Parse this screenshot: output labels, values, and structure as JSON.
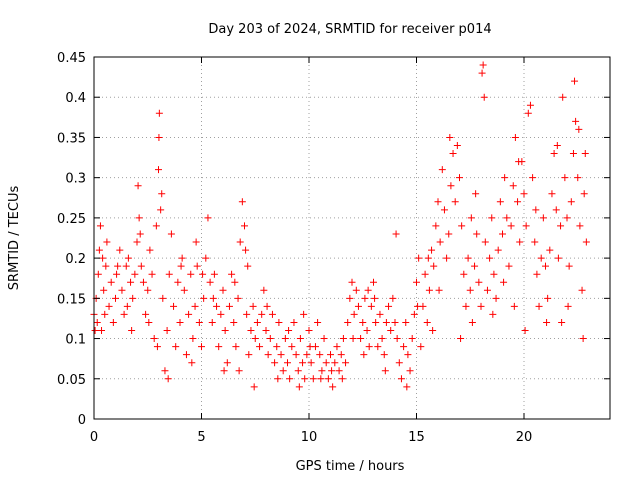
{
  "chart_data": {
    "type": "scatter",
    "title": "Day 203 of 2024, SRMTID for receiver p014",
    "xlabel": "GPS time / hours",
    "ylabel": "SRMTID / TECUs",
    "xlim": [
      0,
      24
    ],
    "ylim": [
      0,
      0.45
    ],
    "xticks": [
      "0",
      "5",
      "10",
      "15",
      "20"
    ],
    "yticks": [
      "0",
      "0.05",
      "0.1",
      "0.15",
      "0.2",
      "0.25",
      "0.3",
      "0.35",
      "0.4",
      "0.45"
    ],
    "grid": true,
    "marker": "+",
    "color": "#ff0000",
    "series": [
      {
        "name": "SRMTID",
        "points": [
          [
            0.0,
            0.13
          ],
          [
            0.1,
            0.15
          ],
          [
            0.15,
            0.12
          ],
          [
            0.2,
            0.18
          ],
          [
            0.25,
            0.21
          ],
          [
            0.3,
            0.24
          ],
          [
            0.35,
            0.11
          ],
          [
            0.4,
            0.2
          ],
          [
            0.45,
            0.16
          ],
          [
            0.5,
            0.13
          ],
          [
            0.6,
            0.22
          ],
          [
            0.7,
            0.14
          ],
          [
            0.8,
            0.17
          ],
          [
            0.9,
            0.12
          ],
          [
            1.0,
            0.15
          ],
          [
            1.1,
            0.19
          ],
          [
            1.2,
            0.21
          ],
          [
            1.3,
            0.16
          ],
          [
            1.4,
            0.13
          ],
          [
            1.5,
            0.19
          ],
          [
            1.6,
            0.2
          ],
          [
            1.7,
            0.17
          ],
          [
            1.8,
            0.15
          ],
          [
            1.9,
            0.18
          ],
          [
            2.0,
            0.22
          ],
          [
            2.05,
            0.29
          ],
          [
            2.1,
            0.25
          ],
          [
            2.2,
            0.19
          ],
          [
            2.3,
            0.17
          ],
          [
            2.4,
            0.13
          ],
          [
            2.5,
            0.16
          ],
          [
            2.6,
            0.21
          ],
          [
            2.7,
            0.18
          ],
          [
            2.8,
            0.1
          ],
          [
            2.9,
            0.24
          ],
          [
            3.0,
            0.31
          ],
          [
            3.02,
            0.35
          ],
          [
            3.04,
            0.38
          ],
          [
            3.1,
            0.26
          ],
          [
            3.2,
            0.15
          ],
          [
            3.3,
            0.06
          ],
          [
            3.4,
            0.11
          ],
          [
            3.5,
            0.18
          ],
          [
            3.6,
            0.23
          ],
          [
            3.7,
            0.14
          ],
          [
            3.8,
            0.09
          ],
          [
            3.9,
            0.17
          ],
          [
            4.0,
            0.12
          ],
          [
            4.1,
            0.2
          ],
          [
            4.2,
            0.16
          ],
          [
            4.3,
            0.08
          ],
          [
            4.4,
            0.13
          ],
          [
            4.5,
            0.18
          ],
          [
            4.6,
            0.1
          ],
          [
            4.7,
            0.14
          ],
          [
            4.8,
            0.19
          ],
          [
            4.9,
            0.12
          ],
          [
            5.0,
            0.09
          ],
          [
            5.1,
            0.15
          ],
          [
            5.2,
            0.2
          ],
          [
            5.3,
            0.25
          ],
          [
            5.4,
            0.17
          ],
          [
            5.5,
            0.12
          ],
          [
            5.6,
            0.18
          ],
          [
            5.7,
            0.14
          ],
          [
            5.8,
            0.09
          ],
          [
            5.9,
            0.13
          ],
          [
            6.0,
            0.16
          ],
          [
            6.1,
            0.11
          ],
          [
            6.2,
            0.07
          ],
          [
            6.3,
            0.14
          ],
          [
            6.4,
            0.18
          ],
          [
            6.5,
            0.12
          ],
          [
            6.6,
            0.09
          ],
          [
            6.7,
            0.15
          ],
          [
            6.8,
            0.22
          ],
          [
            6.9,
            0.27
          ],
          [
            7.0,
            0.24
          ],
          [
            7.05,
            0.21
          ],
          [
            7.1,
            0.13
          ],
          [
            7.2,
            0.08
          ],
          [
            7.3,
            0.11
          ],
          [
            7.4,
            0.14
          ],
          [
            7.5,
            0.1
          ],
          [
            7.6,
            0.12
          ],
          [
            7.7,
            0.09
          ],
          [
            7.8,
            0.13
          ],
          [
            7.9,
            0.16
          ],
          [
            8.0,
            0.11
          ],
          [
            8.1,
            0.08
          ],
          [
            8.2,
            0.1
          ],
          [
            8.3,
            0.13
          ],
          [
            8.4,
            0.07
          ],
          [
            8.5,
            0.09
          ],
          [
            8.6,
            0.12
          ],
          [
            8.7,
            0.08
          ],
          [
            8.8,
            0.06
          ],
          [
            8.9,
            0.1
          ],
          [
            9.0,
            0.07
          ],
          [
            9.1,
            0.05
          ],
          [
            9.2,
            0.09
          ],
          [
            9.3,
            0.12
          ],
          [
            9.4,
            0.08
          ],
          [
            9.5,
            0.06
          ],
          [
            9.6,
            0.1
          ],
          [
            9.7,
            0.07
          ],
          [
            9.8,
            0.05
          ],
          [
            9.9,
            0.08
          ],
          [
            10.0,
            0.11
          ],
          [
            10.1,
            0.07
          ],
          [
            10.2,
            0.05
          ],
          [
            10.3,
            0.09
          ],
          [
            10.4,
            0.12
          ],
          [
            10.5,
            0.08
          ],
          [
            10.6,
            0.06
          ],
          [
            10.7,
            0.1
          ],
          [
            10.8,
            0.07
          ],
          [
            10.9,
            0.05
          ],
          [
            11.0,
            0.08
          ],
          [
            11.1,
            0.04
          ],
          [
            11.2,
            0.07
          ],
          [
            11.3,
            0.09
          ],
          [
            11.4,
            0.06
          ],
          [
            11.5,
            0.08
          ],
          [
            11.6,
            0.1
          ],
          [
            11.7,
            0.07
          ],
          [
            11.8,
            0.12
          ],
          [
            11.9,
            0.15
          ],
          [
            12.0,
            0.17
          ],
          [
            12.1,
            0.13
          ],
          [
            12.2,
            0.16
          ],
          [
            12.3,
            0.14
          ],
          [
            12.4,
            0.1
          ],
          [
            12.5,
            0.12
          ],
          [
            12.6,
            0.15
          ],
          [
            12.7,
            0.11
          ],
          [
            12.8,
            0.09
          ],
          [
            12.9,
            0.14
          ],
          [
            13.0,
            0.17
          ],
          [
            13.1,
            0.12
          ],
          [
            13.2,
            0.09
          ],
          [
            13.3,
            0.13
          ],
          [
            13.4,
            0.1
          ],
          [
            13.5,
            0.08
          ],
          [
            13.6,
            0.12
          ],
          [
            13.7,
            0.14
          ],
          [
            13.8,
            0.11
          ],
          [
            13.9,
            0.15
          ],
          [
            14.0,
            0.12
          ],
          [
            14.05,
            0.23
          ],
          [
            14.1,
            0.1
          ],
          [
            14.2,
            0.07
          ],
          [
            14.3,
            0.05
          ],
          [
            14.4,
            0.09
          ],
          [
            14.5,
            0.12
          ],
          [
            14.6,
            0.08
          ],
          [
            14.7,
            0.06
          ],
          [
            14.8,
            0.1
          ],
          [
            14.9,
            0.13
          ],
          [
            15.0,
            0.17
          ],
          [
            15.1,
            0.2
          ],
          [
            15.2,
            0.09
          ],
          [
            15.3,
            0.14
          ],
          [
            15.4,
            0.18
          ],
          [
            15.5,
            0.12
          ],
          [
            15.6,
            0.16
          ],
          [
            15.7,
            0.21
          ],
          [
            15.8,
            0.19
          ],
          [
            15.9,
            0.24
          ],
          [
            16.0,
            0.27
          ],
          [
            16.1,
            0.22
          ],
          [
            16.2,
            0.31
          ],
          [
            16.3,
            0.26
          ],
          [
            16.4,
            0.2
          ],
          [
            16.5,
            0.23
          ],
          [
            16.6,
            0.29
          ],
          [
            16.7,
            0.33
          ],
          [
            16.8,
            0.27
          ],
          [
            16.9,
            0.34
          ],
          [
            17.0,
            0.3
          ],
          [
            17.1,
            0.24
          ],
          [
            17.2,
            0.18
          ],
          [
            17.3,
            0.14
          ],
          [
            17.4,
            0.2
          ],
          [
            17.5,
            0.16
          ],
          [
            17.6,
            0.12
          ],
          [
            17.7,
            0.19
          ],
          [
            17.8,
            0.23
          ],
          [
            17.9,
            0.17
          ],
          [
            18.0,
            0.14
          ],
          [
            18.05,
            0.43
          ],
          [
            18.1,
            0.44
          ],
          [
            18.15,
            0.4
          ],
          [
            18.2,
            0.22
          ],
          [
            18.3,
            0.16
          ],
          [
            18.4,
            0.2
          ],
          [
            18.5,
            0.25
          ],
          [
            18.6,
            0.18
          ],
          [
            18.7,
            0.15
          ],
          [
            18.8,
            0.21
          ],
          [
            18.9,
            0.27
          ],
          [
            19.0,
            0.23
          ],
          [
            19.1,
            0.3
          ],
          [
            19.2,
            0.25
          ],
          [
            19.3,
            0.19
          ],
          [
            19.4,
            0.24
          ],
          [
            19.5,
            0.29
          ],
          [
            19.6,
            0.35
          ],
          [
            19.7,
            0.27
          ],
          [
            19.8,
            0.22
          ],
          [
            19.9,
            0.32
          ],
          [
            20.0,
            0.28
          ],
          [
            20.1,
            0.24
          ],
          [
            20.2,
            0.38
          ],
          [
            20.3,
            0.39
          ],
          [
            20.4,
            0.3
          ],
          [
            20.5,
            0.22
          ],
          [
            20.6,
            0.18
          ],
          [
            20.7,
            0.14
          ],
          [
            20.8,
            0.2
          ],
          [
            20.9,
            0.25
          ],
          [
            21.0,
            0.19
          ],
          [
            21.1,
            0.15
          ],
          [
            21.2,
            0.21
          ],
          [
            21.3,
            0.28
          ],
          [
            21.4,
            0.33
          ],
          [
            21.5,
            0.26
          ],
          [
            21.6,
            0.2
          ],
          [
            21.7,
            0.24
          ],
          [
            21.8,
            0.4
          ],
          [
            21.9,
            0.3
          ],
          [
            22.0,
            0.25
          ],
          [
            22.1,
            0.19
          ],
          [
            22.2,
            0.27
          ],
          [
            22.3,
            0.33
          ],
          [
            22.35,
            0.42
          ],
          [
            22.4,
            0.37
          ],
          [
            22.5,
            0.3
          ],
          [
            22.6,
            0.24
          ],
          [
            22.7,
            0.16
          ],
          [
            22.75,
            0.1
          ],
          [
            22.8,
            0.28
          ],
          [
            0.05,
            0.11
          ],
          [
            0.55,
            0.19
          ],
          [
            1.05,
            0.18
          ],
          [
            1.55,
            0.14
          ],
          [
            2.15,
            0.23
          ],
          [
            2.55,
            0.12
          ],
          [
            3.15,
            0.28
          ],
          [
            3.45,
            0.05
          ],
          [
            4.05,
            0.19
          ],
          [
            4.55,
            0.07
          ],
          [
            5.05,
            0.18
          ],
          [
            5.55,
            0.15
          ],
          [
            6.05,
            0.06
          ],
          [
            6.55,
            0.17
          ],
          [
            7.15,
            0.19
          ],
          [
            7.45,
            0.04
          ],
          [
            8.05,
            0.14
          ],
          [
            8.55,
            0.05
          ],
          [
            9.05,
            0.11
          ],
          [
            9.55,
            0.04
          ],
          [
            10.05,
            0.09
          ],
          [
            10.55,
            0.05
          ],
          [
            11.05,
            0.06
          ],
          [
            11.55,
            0.05
          ],
          [
            12.05,
            0.1
          ],
          [
            12.55,
            0.08
          ],
          [
            13.05,
            0.15
          ],
          [
            13.55,
            0.06
          ],
          [
            14.55,
            0.04
          ],
          [
            15.05,
            0.14
          ],
          [
            15.55,
            0.2
          ],
          [
            16.05,
            0.16
          ],
          [
            16.55,
            0.35
          ],
          [
            17.05,
            0.1
          ],
          [
            17.55,
            0.25
          ],
          [
            18.55,
            0.13
          ],
          [
            19.05,
            0.17
          ],
          [
            19.55,
            0.14
          ],
          [
            20.05,
            0.11
          ],
          [
            20.55,
            0.26
          ],
          [
            21.05,
            0.12
          ],
          [
            21.55,
            0.34
          ],
          [
            22.05,
            0.14
          ],
          [
            22.55,
            0.36
          ],
          [
            22.85,
            0.33
          ],
          [
            22.9,
            0.22
          ],
          [
            1.75,
            0.11
          ],
          [
            2.95,
            0.09
          ],
          [
            4.75,
            0.22
          ],
          [
            6.75,
            0.06
          ],
          [
            9.75,
            0.13
          ],
          [
            12.75,
            0.16
          ],
          [
            15.75,
            0.11
          ],
          [
            17.75,
            0.28
          ],
          [
            19.75,
            0.32
          ],
          [
            21.75,
            0.12
          ]
        ]
      }
    ]
  }
}
